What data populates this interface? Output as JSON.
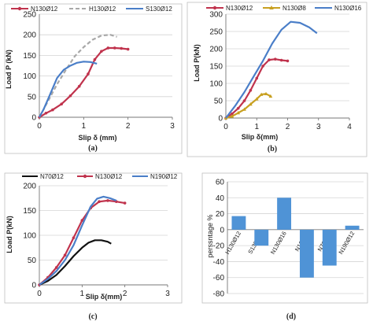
{
  "figure": {
    "panels": [
      "a",
      "b",
      "c",
      "d"
    ]
  },
  "chart_data": [
    {
      "id": "a",
      "type": "line",
      "caption": "(a)",
      "xlabel": "Slip δ (mm)",
      "ylabel": "Load P (kN)",
      "xlim": [
        0,
        3
      ],
      "ylim": [
        0,
        250
      ],
      "xticks": [
        0,
        1,
        2,
        3
      ],
      "yticks": [
        0,
        50,
        100,
        150,
        200,
        250
      ],
      "grid": "horizontal",
      "legend_position": "top",
      "series": [
        {
          "name": "N130Ø12",
          "color": "#c0334d",
          "dash": "",
          "marker": "dot",
          "x": [
            0,
            0.15,
            0.3,
            0.5,
            0.7,
            0.9,
            1.1,
            1.25,
            1.4,
            1.55,
            1.7,
            1.85,
            2.0
          ],
          "y": [
            0,
            10,
            18,
            32,
            52,
            75,
            105,
            140,
            160,
            168,
            168,
            167,
            165
          ]
        },
        {
          "name": "H130Ø12",
          "color": "#a8a8a8",
          "dash": "5,3",
          "marker": "",
          "x": [
            0,
            0.2,
            0.4,
            0.6,
            0.8,
            1.0,
            1.2,
            1.4,
            1.6,
            1.75
          ],
          "y": [
            0,
            40,
            80,
            115,
            148,
            170,
            188,
            198,
            200,
            195
          ]
        },
        {
          "name": "S130Ø12",
          "color": "#4a7ec8",
          "dash": "",
          "marker": "",
          "x": [
            0,
            0.1,
            0.2,
            0.3,
            0.4,
            0.55,
            0.7,
            0.85,
            1.0,
            1.15,
            1.3
          ],
          "y": [
            0,
            20,
            45,
            70,
            95,
            115,
            125,
            132,
            135,
            134,
            130
          ]
        }
      ]
    },
    {
      "id": "b",
      "type": "line",
      "caption": "(b)",
      "xlabel": "Slip δ(mm)",
      "ylabel": "Load P(kN)",
      "xlim": [
        0,
        4
      ],
      "ylim": [
        0,
        300
      ],
      "xticks": [
        0,
        1,
        2,
        3,
        4
      ],
      "yticks": [
        0,
        50,
        100,
        150,
        200,
        250,
        300
      ],
      "grid": "horizontal",
      "legend_position": "top",
      "series": [
        {
          "name": "N130Ø12",
          "color": "#c0334d",
          "dash": "",
          "marker": "dot",
          "x": [
            0,
            0.2,
            0.4,
            0.6,
            0.8,
            1.0,
            1.2,
            1.4,
            1.6,
            1.8,
            2.0
          ],
          "y": [
            0,
            12,
            28,
            50,
            80,
            115,
            150,
            168,
            170,
            167,
            165
          ]
        },
        {
          "name": "N130Ø8",
          "color": "#c8a020",
          "dash": "",
          "marker": "tri",
          "x": [
            0,
            0.2,
            0.4,
            0.6,
            0.8,
            1.0,
            1.15,
            1.3,
            1.45
          ],
          "y": [
            0,
            5,
            15,
            25,
            40,
            55,
            68,
            70,
            63
          ]
        },
        {
          "name": "N130Ø16",
          "color": "#4a7ec8",
          "dash": "",
          "marker": "",
          "x": [
            0,
            0.3,
            0.6,
            0.9,
            1.2,
            1.5,
            1.8,
            2.1,
            2.4,
            2.7,
            2.95
          ],
          "y": [
            0,
            35,
            75,
            120,
            165,
            215,
            255,
            278,
            275,
            262,
            245
          ]
        }
      ]
    },
    {
      "id": "c",
      "type": "line",
      "caption": "(c)",
      "xlabel": "Slip δ(mm)",
      "ylabel": "Load P(kN)",
      "xlim": [
        0,
        3
      ],
      "ylim": [
        0,
        200
      ],
      "xticks": [
        0,
        1,
        2,
        3
      ],
      "yticks": [
        0,
        50,
        100,
        150,
        200
      ],
      "grid": "horizontal",
      "legend_position": "top",
      "series": [
        {
          "name": "N70Ø12",
          "color": "#111111",
          "dash": "",
          "marker": "",
          "x": [
            0,
            0.2,
            0.4,
            0.6,
            0.8,
            1.0,
            1.15,
            1.3,
            1.45,
            1.6,
            1.68
          ],
          "y": [
            0,
            8,
            20,
            38,
            58,
            75,
            85,
            90,
            90,
            87,
            83
          ]
        },
        {
          "name": "N130Ø12",
          "color": "#c0334d",
          "dash": "",
          "marker": "dot",
          "x": [
            0,
            0.2,
            0.4,
            0.6,
            0.8,
            1.0,
            1.2,
            1.4,
            1.6,
            1.8,
            2.0
          ],
          "y": [
            0,
            15,
            35,
            60,
            95,
            130,
            155,
            168,
            170,
            168,
            165
          ]
        },
        {
          "name": "N190Ø12",
          "color": "#4a7ec8",
          "dash": "",
          "marker": "",
          "x": [
            0,
            0.2,
            0.4,
            0.6,
            0.8,
            1.0,
            1.2,
            1.35,
            1.5,
            1.65,
            1.8
          ],
          "y": [
            0,
            12,
            28,
            50,
            80,
            120,
            158,
            174,
            178,
            175,
            170
          ]
        }
      ]
    },
    {
      "id": "d",
      "type": "bar",
      "caption": "(d)",
      "ylabel": "perssntage %",
      "ylim": [
        -80,
        60
      ],
      "yticks": [
        -80,
        -60,
        -40,
        -20,
        0,
        20,
        40,
        60
      ],
      "grid": "horizontal",
      "bar_color": "#4f93d6",
      "categories": [
        "H130Ø12",
        "S130Ø12",
        "N130Ø16",
        "N130Ø8",
        "N70Ø12",
        "N190Ø12"
      ],
      "values": [
        17,
        -20,
        40,
        -60,
        -45,
        5
      ]
    }
  ]
}
